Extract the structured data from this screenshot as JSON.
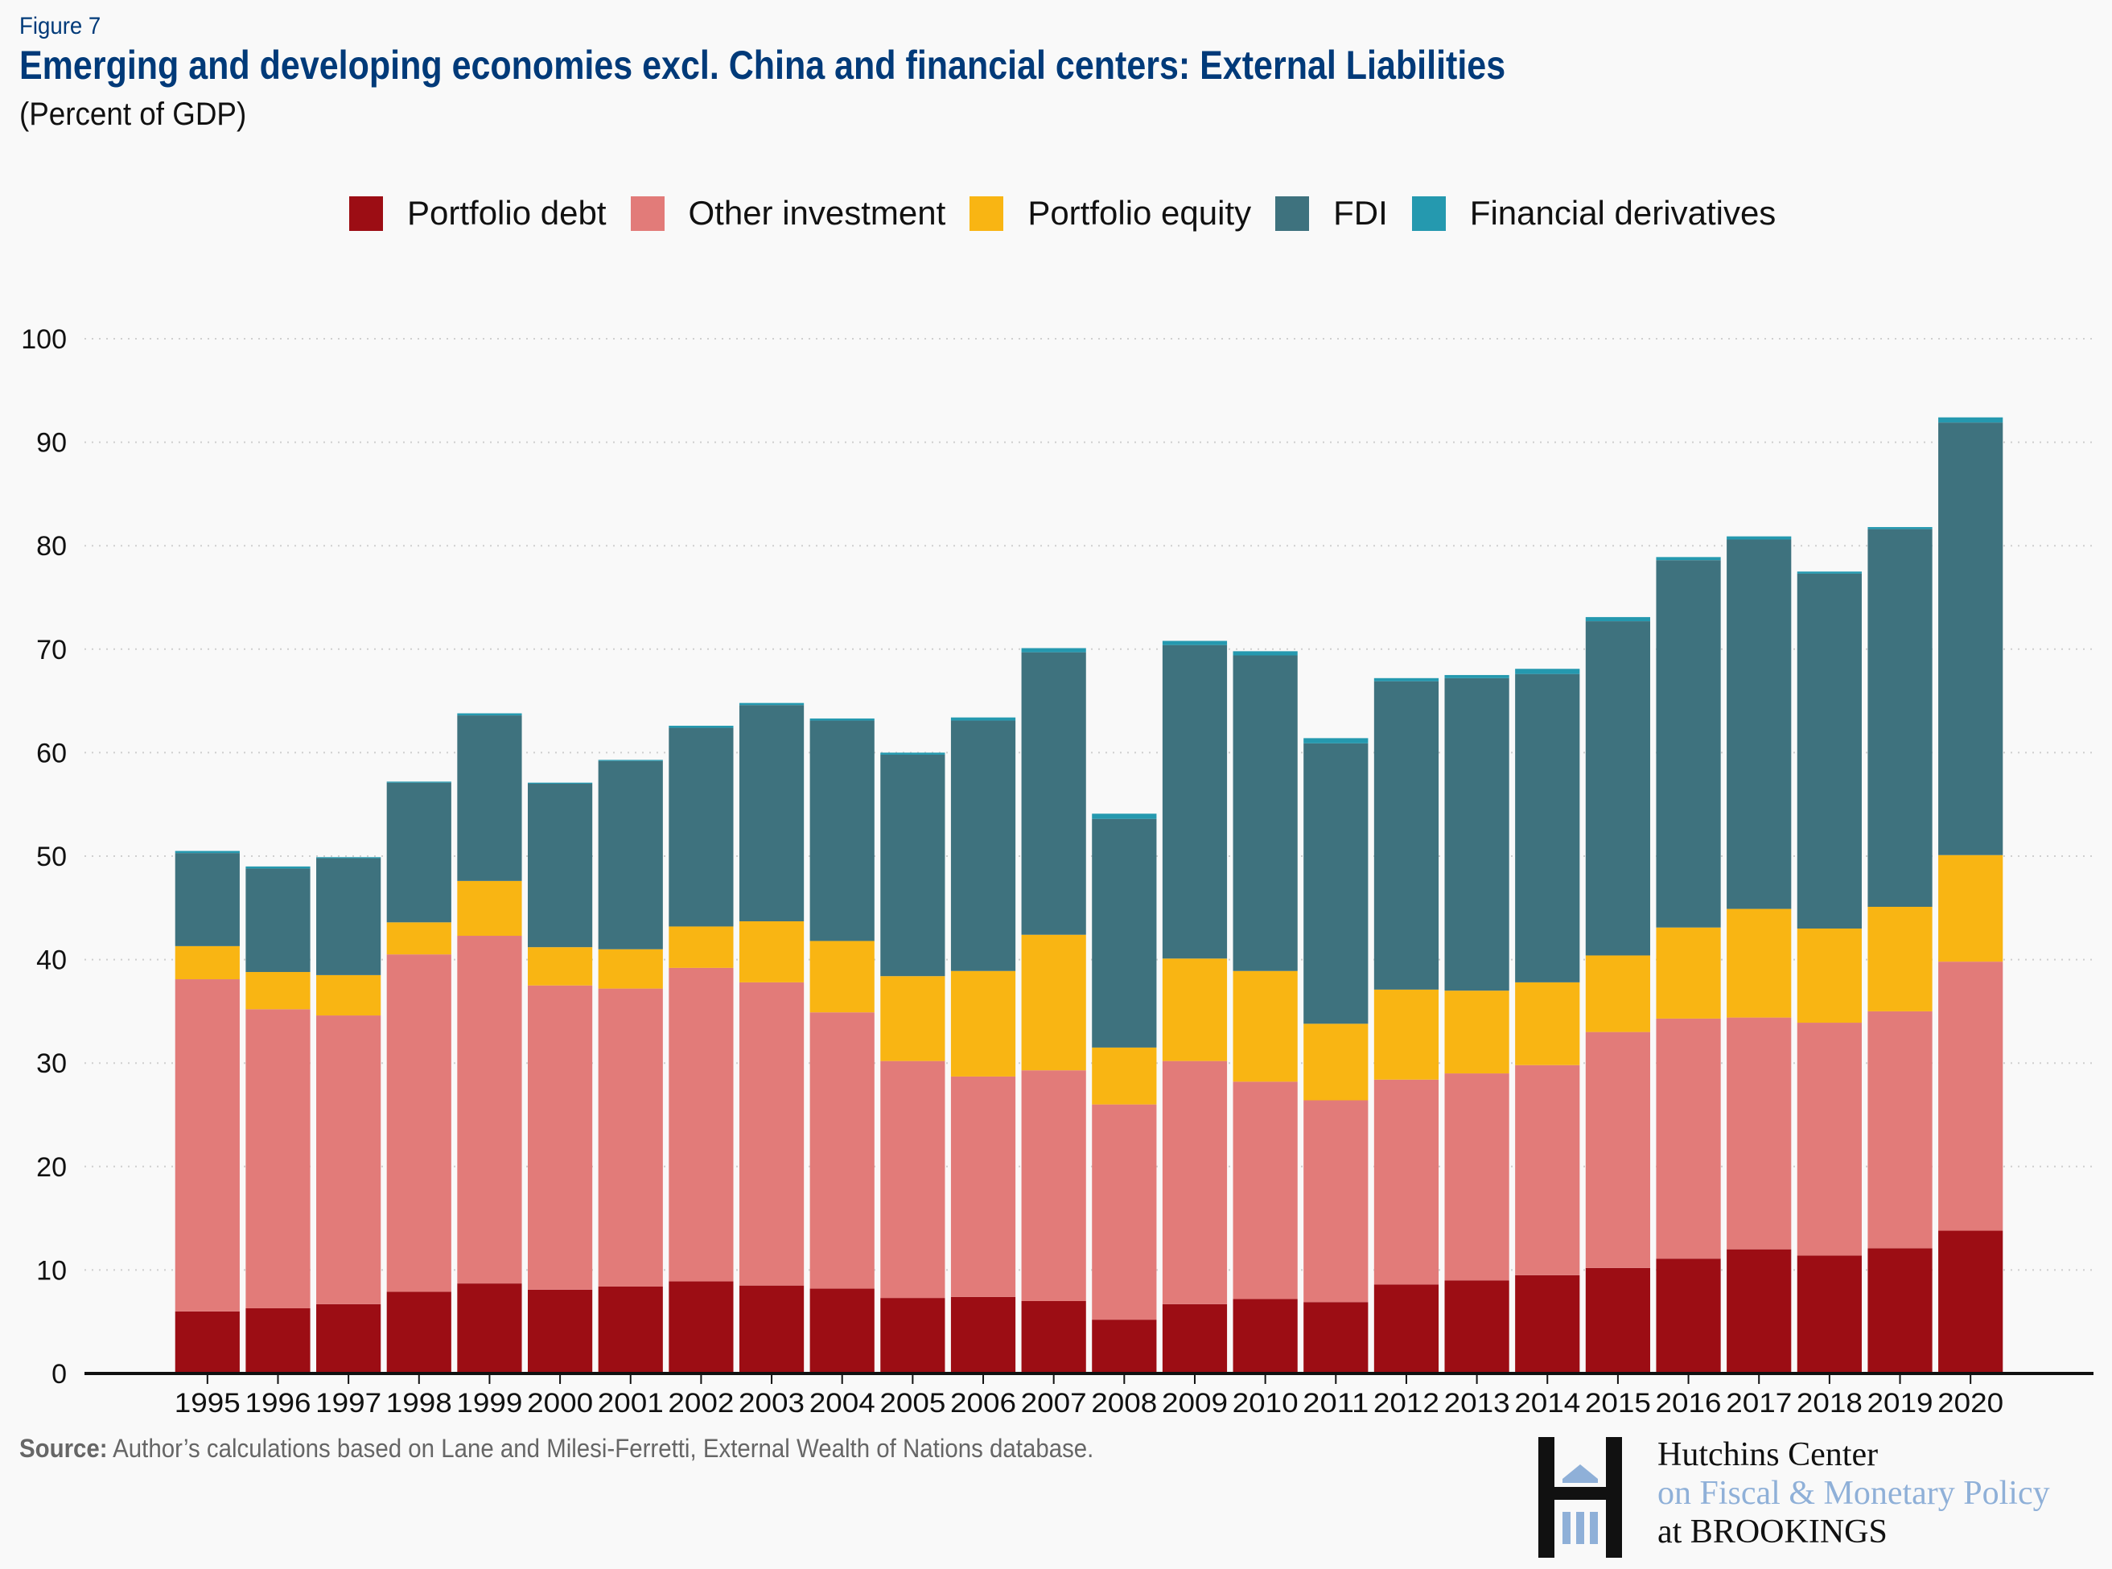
{
  "figure_label": "Figure 7",
  "title": "Emerging and developing economies excl. China and financial centers: External Liabilities",
  "subtitle": "(Percent of GDP)",
  "source": {
    "label": "Source:",
    "text": " Author’s calculations based on Lane and Milesi-Ferretti, External Wealth of Nations database."
  },
  "logo": {
    "line1": "Hutchins Center",
    "line2": "on Fiscal & Monetary Policy",
    "line3": "at BROOKINGS",
    "icon": "hutchins-h-building-icon"
  },
  "colors": {
    "title": "#003a79",
    "portfolio_debt": "#9c0d14",
    "other_investment": "#e27b79",
    "portfolio_equity": "#f9b513",
    "fdi": "#3e727e",
    "financial_derivatives": "#2599af",
    "logo_blue": "#8fb0d8"
  },
  "chart_data": {
    "type": "bar",
    "stacked": true,
    "title": "Emerging and developing economies excl. China and financial centers: External Liabilities",
    "subtitle": "(Percent of GDP)",
    "xlabel": "",
    "ylabel": "",
    "ylim": [
      0,
      100
    ],
    "yticks": [
      0,
      10,
      20,
      30,
      40,
      50,
      60,
      70,
      80,
      90,
      100
    ],
    "grid": "horizontal dotted",
    "legend_position": "top-center",
    "categories": [
      "1995",
      "1996",
      "1997",
      "1998",
      "1999",
      "2000",
      "2001",
      "2002",
      "2003",
      "2004",
      "2005",
      "2006",
      "2007",
      "2008",
      "2009",
      "2010",
      "2011",
      "2012",
      "2013",
      "2014",
      "2015",
      "2016",
      "2017",
      "2018",
      "2019",
      "2020"
    ],
    "series": [
      {
        "name": "Portfolio debt",
        "color": "#9c0d14",
        "values": [
          6.0,
          6.3,
          6.7,
          7.9,
          8.7,
          8.1,
          8.4,
          8.9,
          8.5,
          8.2,
          7.3,
          7.4,
          7.0,
          5.2,
          6.7,
          7.2,
          6.9,
          8.6,
          9.0,
          9.5,
          10.2,
          11.1,
          12.0,
          11.4,
          12.1,
          13.8
        ]
      },
      {
        "name": "Other investment",
        "color": "#e27b79",
        "values": [
          32.1,
          28.9,
          27.9,
          32.6,
          33.6,
          29.4,
          28.8,
          30.3,
          29.3,
          26.7,
          22.9,
          21.3,
          22.3,
          20.8,
          23.5,
          21.0,
          19.5,
          19.8,
          20.0,
          20.3,
          22.8,
          23.2,
          22.4,
          22.5,
          22.9,
          26.0
        ]
      },
      {
        "name": "Portfolio equity",
        "color": "#f9b513",
        "values": [
          3.2,
          3.6,
          3.9,
          3.1,
          5.3,
          3.7,
          3.8,
          4.0,
          5.9,
          6.9,
          8.2,
          10.2,
          13.1,
          5.5,
          9.9,
          10.7,
          7.4,
          8.7,
          8.0,
          8.0,
          7.4,
          8.8,
          10.5,
          9.1,
          10.1,
          10.3
        ]
      },
      {
        "name": "FDI",
        "color": "#3e727e",
        "values": [
          9.0,
          10.0,
          11.3,
          13.5,
          16.0,
          15.8,
          18.2,
          19.2,
          20.9,
          21.3,
          21.4,
          24.2,
          27.3,
          22.1,
          30.3,
          30.5,
          27.1,
          29.8,
          30.2,
          29.8,
          32.3,
          35.5,
          35.7,
          34.3,
          36.5,
          41.8
        ]
      },
      {
        "name": "Financial derivatives",
        "color": "#2599af",
        "values": [
          0.2,
          0.2,
          0.1,
          0.1,
          0.2,
          0.1,
          0.1,
          0.2,
          0.2,
          0.2,
          0.2,
          0.3,
          0.4,
          0.5,
          0.4,
          0.4,
          0.5,
          0.3,
          0.3,
          0.5,
          0.4,
          0.3,
          0.3,
          0.2,
          0.2,
          0.5
        ]
      }
    ]
  }
}
